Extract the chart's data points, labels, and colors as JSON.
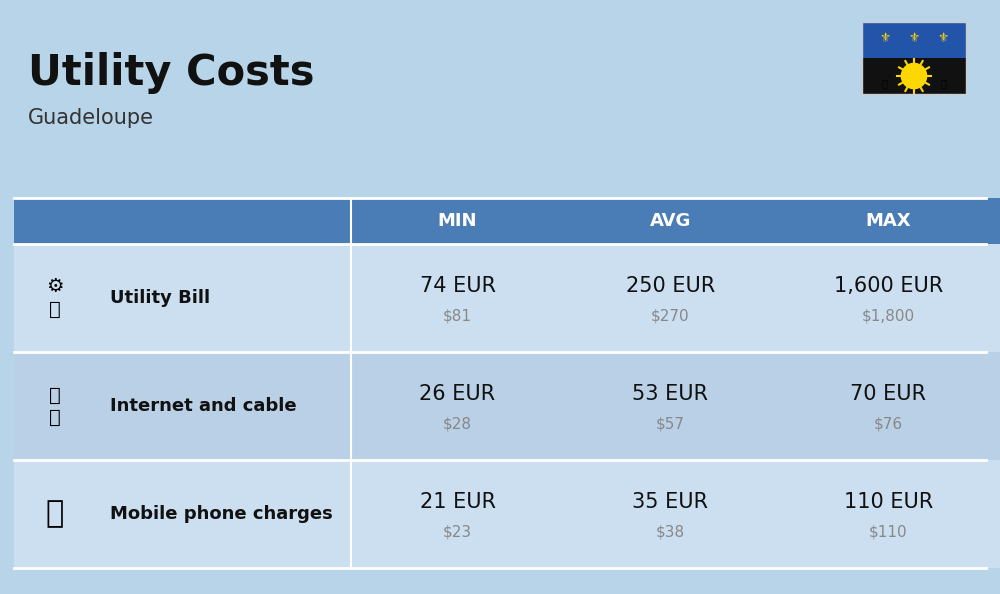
{
  "title": "Utility Costs",
  "subtitle": "Guadeloupe",
  "background_color": "#b8d4e8",
  "header_bg_color": "#4a7db5",
  "header_text_color": "#ffffff",
  "row_bg_color_1": "#ccdff0",
  "row_bg_color_2": "#bad0e6",
  "col_headers": [
    "MIN",
    "AVG",
    "MAX"
  ],
  "rows": [
    {
      "icon": "utility",
      "label": "Utility Bill",
      "min_eur": "74 EUR",
      "min_usd": "$81",
      "avg_eur": "250 EUR",
      "avg_usd": "$270",
      "max_eur": "1,600 EUR",
      "max_usd": "$1,800"
    },
    {
      "icon": "internet",
      "label": "Internet and cable",
      "min_eur": "26 EUR",
      "min_usd": "$28",
      "avg_eur": "53 EUR",
      "avg_usd": "$57",
      "max_eur": "70 EUR",
      "max_usd": "$76"
    },
    {
      "icon": "mobile",
      "label": "Mobile phone charges",
      "min_eur": "21 EUR",
      "min_usd": "$23",
      "avg_eur": "35 EUR",
      "avg_usd": "$38",
      "max_eur": "110 EUR",
      "max_usd": "$110"
    }
  ],
  "title_fontsize": 30,
  "subtitle_fontsize": 15,
  "header_fontsize": 13,
  "label_fontsize": 13,
  "value_fontsize": 15,
  "usd_fontsize": 11,
  "flag_top_color": "#2255aa",
  "flag_bottom_color": "#111111",
  "flag_sun_color": "#FFD700",
  "flag_fleur_color": "#FFD700",
  "flag_green_color": "#228B22"
}
